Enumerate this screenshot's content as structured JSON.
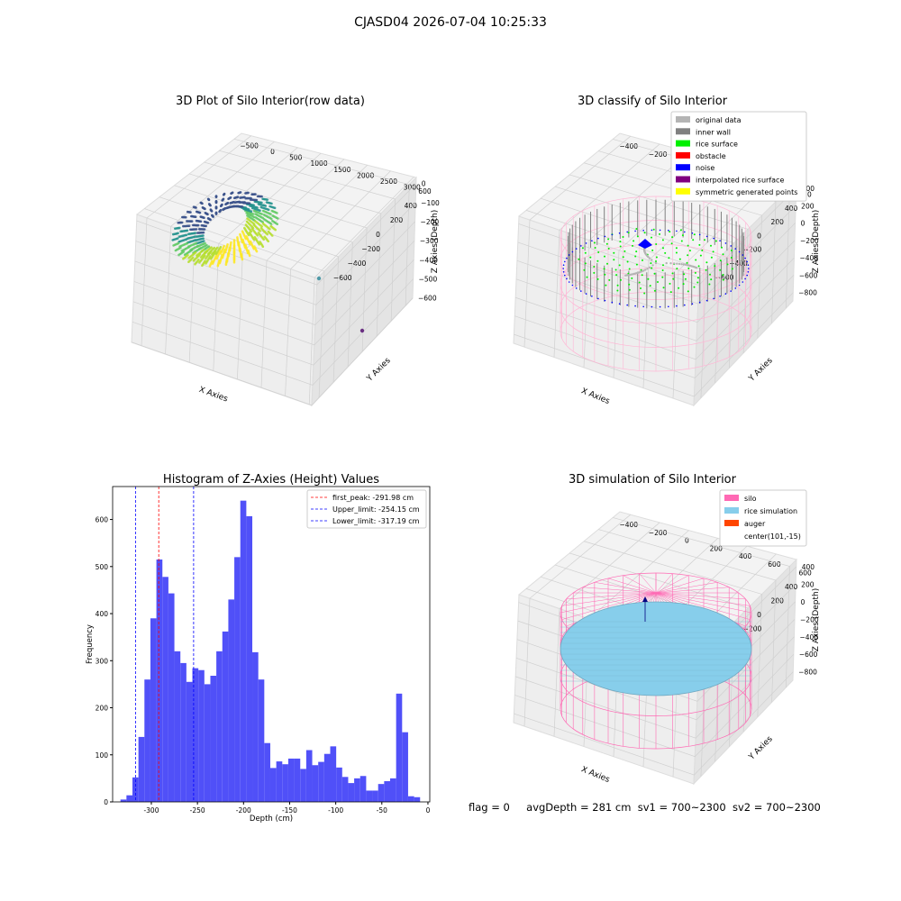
{
  "suptitle": "CJASD04 2026-07-04 10:25:33",
  "status": {
    "flag": "flag = 0",
    "avg_depth": "avgDepth = 281 cm",
    "sv1": "sv1 = 700~2300",
    "sv2": "sv2 = 700~2300"
  },
  "chart_data": [
    {
      "type": "scatter",
      "projection": "3d",
      "title": "3D Plot of Silo Interior(row data)",
      "xlabel": "X Axies",
      "ylabel": "Y Axies",
      "zlabel": "Z Axies (Depth)",
      "xticks": [
        "−500",
        "0",
        "500",
        "1000",
        "1500",
        "2000",
        "2500",
        "3000"
      ],
      "yticks": [
        "600",
        "400",
        "200",
        "0",
        "−200",
        "−400",
        "−600"
      ],
      "zticks": [
        "0",
        "−100",
        "−200",
        "−300",
        "−400",
        "−500",
        "−600"
      ],
      "colormap": "viridis",
      "outliers": [
        {
          "x": 2050,
          "y": 120,
          "z": -520,
          "color": "#4f9aa8"
        },
        {
          "x": 2900,
          "y": 250,
          "z": -580,
          "color": "#6a2f82"
        }
      ]
    },
    {
      "type": "scatter",
      "projection": "3d",
      "title": "3D classify of Silo Interior",
      "xlabel": "X Axies",
      "ylabel": "Y Axies",
      "zlabel": "Z Axies (Depth)",
      "xticks": [
        "−400",
        "−200",
        "0",
        "200",
        "400",
        "600"
      ],
      "yticks": [
        "600",
        "400",
        "200",
        "0",
        "−200",
        "−400",
        "−600"
      ],
      "zticks": [
        "400",
        "200",
        "0",
        "−200",
        "−400",
        "−600",
        "−800"
      ],
      "legend_position": "upper right",
      "legend": [
        {
          "label": "original data",
          "color": "#b4b4b4"
        },
        {
          "label": "inner wall",
          "color": "#808080"
        },
        {
          "label": "rice surface",
          "color": "#00f000"
        },
        {
          "label": "obstacle",
          "color": "#ff0000"
        },
        {
          "label": "noise",
          "color": "#0000ff"
        },
        {
          "label": "interpolated rice surface",
          "color": "#800080"
        },
        {
          "label": "symmetric generated points",
          "color": "#ffff00"
        }
      ],
      "silo_color": "#ffb6d5"
    },
    {
      "type": "bar",
      "title": "Histogram of Z-Axies (Height) Values",
      "xlabel": "Depth (cm)",
      "ylabel": "Frequency",
      "xlim": [
        -342,
        2
      ],
      "ylim": [
        0,
        670
      ],
      "xticks": [
        -300,
        -250,
        -200,
        -150,
        -100,
        -50,
        0
      ],
      "yticks": [
        0,
        100,
        200,
        300,
        400,
        500,
        600
      ],
      "bin_start": -333.5,
      "bin_width": 6.5,
      "bar_color": "#5050f8",
      "counts": [
        5,
        14,
        52,
        138,
        260,
        390,
        515,
        478,
        443,
        320,
        295,
        255,
        284,
        280,
        250,
        268,
        320,
        362,
        430,
        520,
        640,
        607,
        318,
        260,
        125,
        72,
        86,
        80,
        92,
        92,
        70,
        110,
        78,
        85,
        102,
        118,
        73,
        53,
        40,
        50,
        55,
        24,
        24,
        38,
        44,
        50,
        230,
        148,
        12,
        10
      ],
      "vlines": [
        {
          "label": "first_peak: -291.98 cm",
          "x": -291.98,
          "color": "#ff0000"
        },
        {
          "label": "Upper_limit: -254.15 cm",
          "x": -254.15,
          "color": "#0000ff"
        },
        {
          "label": "Lower_limit: -317.19 cm",
          "x": -317.19,
          "color": "#0000ff"
        }
      ],
      "legend_position": "upper right"
    },
    {
      "type": "scatter",
      "projection": "3d",
      "title": "3D simulation of Silo Interior",
      "xlabel": "X Axies",
      "ylabel": "Y Axies",
      "zlabel": "Z Axies (Depth)",
      "xticks": [
        "−400",
        "−200",
        "0",
        "200",
        "400",
        "600"
      ],
      "yticks": [
        "600",
        "400",
        "200",
        "0",
        "−200",
        "−400",
        "−600"
      ],
      "zticks": [
        "400",
        "200",
        "0",
        "−200",
        "−400",
        "−600",
        "−800"
      ],
      "legend_position": "upper right",
      "legend": [
        {
          "label": "silo",
          "color": "#ff69b4"
        },
        {
          "label": "rice simulation",
          "color": "#87ceeb"
        },
        {
          "label": "auger",
          "color": "#ff4500"
        },
        {
          "label": "center(101,-15)",
          "color": ""
        }
      ]
    }
  ]
}
